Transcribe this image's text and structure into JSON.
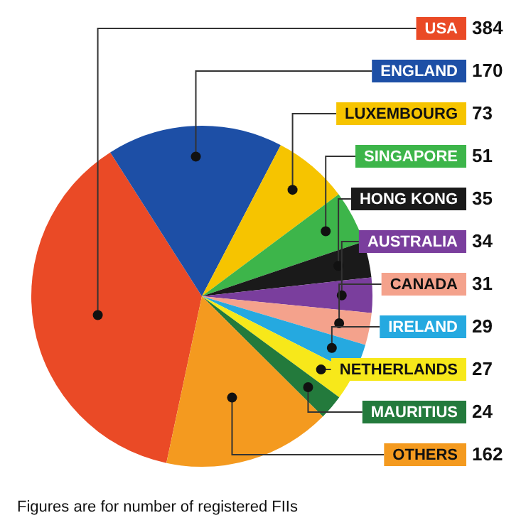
{
  "chart_data": {
    "type": "pie",
    "categories": [
      "USA",
      "ENGLAND",
      "LUXEMBOURG",
      "SINGAPORE",
      "HONG KONG",
      "AUSTRALIA",
      "CANADA",
      "IRELAND",
      "NETHERLANDS",
      "MAURITIUS",
      "OTHERS"
    ],
    "values": [
      384,
      170,
      73,
      51,
      35,
      34,
      31,
      29,
      27,
      24,
      162
    ],
    "colors": [
      "#ea4a26",
      "#1d4fa6",
      "#f6c400",
      "#3db54a",
      "#1a1a1a",
      "#7a3e9d",
      "#f4a28c",
      "#25a9e0",
      "#f7e81a",
      "#237a3c",
      "#f49a1f"
    ],
    "data_labels": true,
    "legend": false,
    "annotations": [
      "Figures are for number of registered FIIs"
    ]
  }
}
